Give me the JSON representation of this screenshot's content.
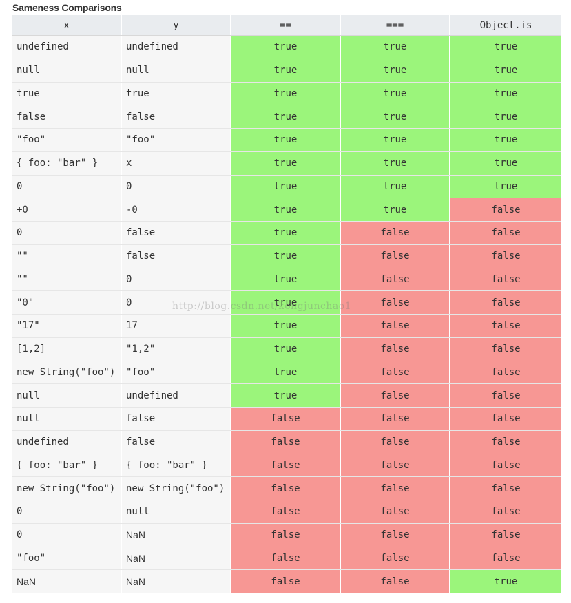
{
  "caption": "Sameness Comparisons",
  "headers": [
    "x",
    "y",
    "==",
    "===",
    "Object.is"
  ],
  "rows": [
    {
      "x": "undefined",
      "y": "undefined",
      "eq": "true",
      "seq": "true",
      "is": "true"
    },
    {
      "x": "null",
      "y": "null",
      "eq": "true",
      "seq": "true",
      "is": "true"
    },
    {
      "x": "true",
      "y": "true",
      "eq": "true",
      "seq": "true",
      "is": "true"
    },
    {
      "x": "false",
      "y": "false",
      "eq": "true",
      "seq": "true",
      "is": "true"
    },
    {
      "x": "\"foo\"",
      "y": "\"foo\"",
      "eq": "true",
      "seq": "true",
      "is": "true"
    },
    {
      "x": "{ foo: \"bar\" }",
      "y": "x",
      "eq": "true",
      "seq": "true",
      "is": "true"
    },
    {
      "x": "0",
      "y": "0",
      "eq": "true",
      "seq": "true",
      "is": "true"
    },
    {
      "x": "+0",
      "y": "-0",
      "eq": "true",
      "seq": "true",
      "is": "false"
    },
    {
      "x": "0",
      "y": "false",
      "eq": "true",
      "seq": "false",
      "is": "false"
    },
    {
      "x": "\"\"",
      "y": "false",
      "eq": "true",
      "seq": "false",
      "is": "false"
    },
    {
      "x": "\"\"",
      "y": "0",
      "eq": "true",
      "seq": "false",
      "is": "false"
    },
    {
      "x": "\"0\"",
      "y": "0",
      "eq": "true",
      "seq": "false",
      "is": "false"
    },
    {
      "x": "\"17\"",
      "y": "17",
      "eq": "true",
      "seq": "false",
      "is": "false"
    },
    {
      "x": "[1,2]",
      "y": "\"1,2\"",
      "eq": "true",
      "seq": "false",
      "is": "false"
    },
    {
      "x": "new String(\"foo\")",
      "y": "\"foo\"",
      "eq": "true",
      "seq": "false",
      "is": "false"
    },
    {
      "x": "null",
      "y": "undefined",
      "eq": "true",
      "seq": "false",
      "is": "false"
    },
    {
      "x": "null",
      "y": "false",
      "eq": "false",
      "seq": "false",
      "is": "false"
    },
    {
      "x": "undefined",
      "y": "false",
      "eq": "false",
      "seq": "false",
      "is": "false"
    },
    {
      "x": "{ foo: \"bar\" }",
      "y": "{ foo: \"bar\" }",
      "eq": "false",
      "seq": "false",
      "is": "false"
    },
    {
      "x": "new String(\"foo\")",
      "y": "new String(\"foo\")",
      "eq": "false",
      "seq": "false",
      "is": "false"
    },
    {
      "x": "0",
      "y": "null",
      "eq": "false",
      "seq": "false",
      "is": "false"
    },
    {
      "x": "0",
      "y": "NaN",
      "eq": "false",
      "seq": "false",
      "is": "false"
    },
    {
      "x": "\"foo\"",
      "y": "NaN",
      "eq": "false",
      "seq": "false",
      "is": "false"
    },
    {
      "x": "NaN",
      "y": "NaN",
      "eq": "false",
      "seq": "false",
      "is": "true"
    }
  ],
  "colors": {
    "true_bg": "#9bf57b",
    "false_bg": "#f79794",
    "header_bg": "#e9ecef"
  },
  "watermark": "http://blog.csdn.net/kongjunchao1"
}
